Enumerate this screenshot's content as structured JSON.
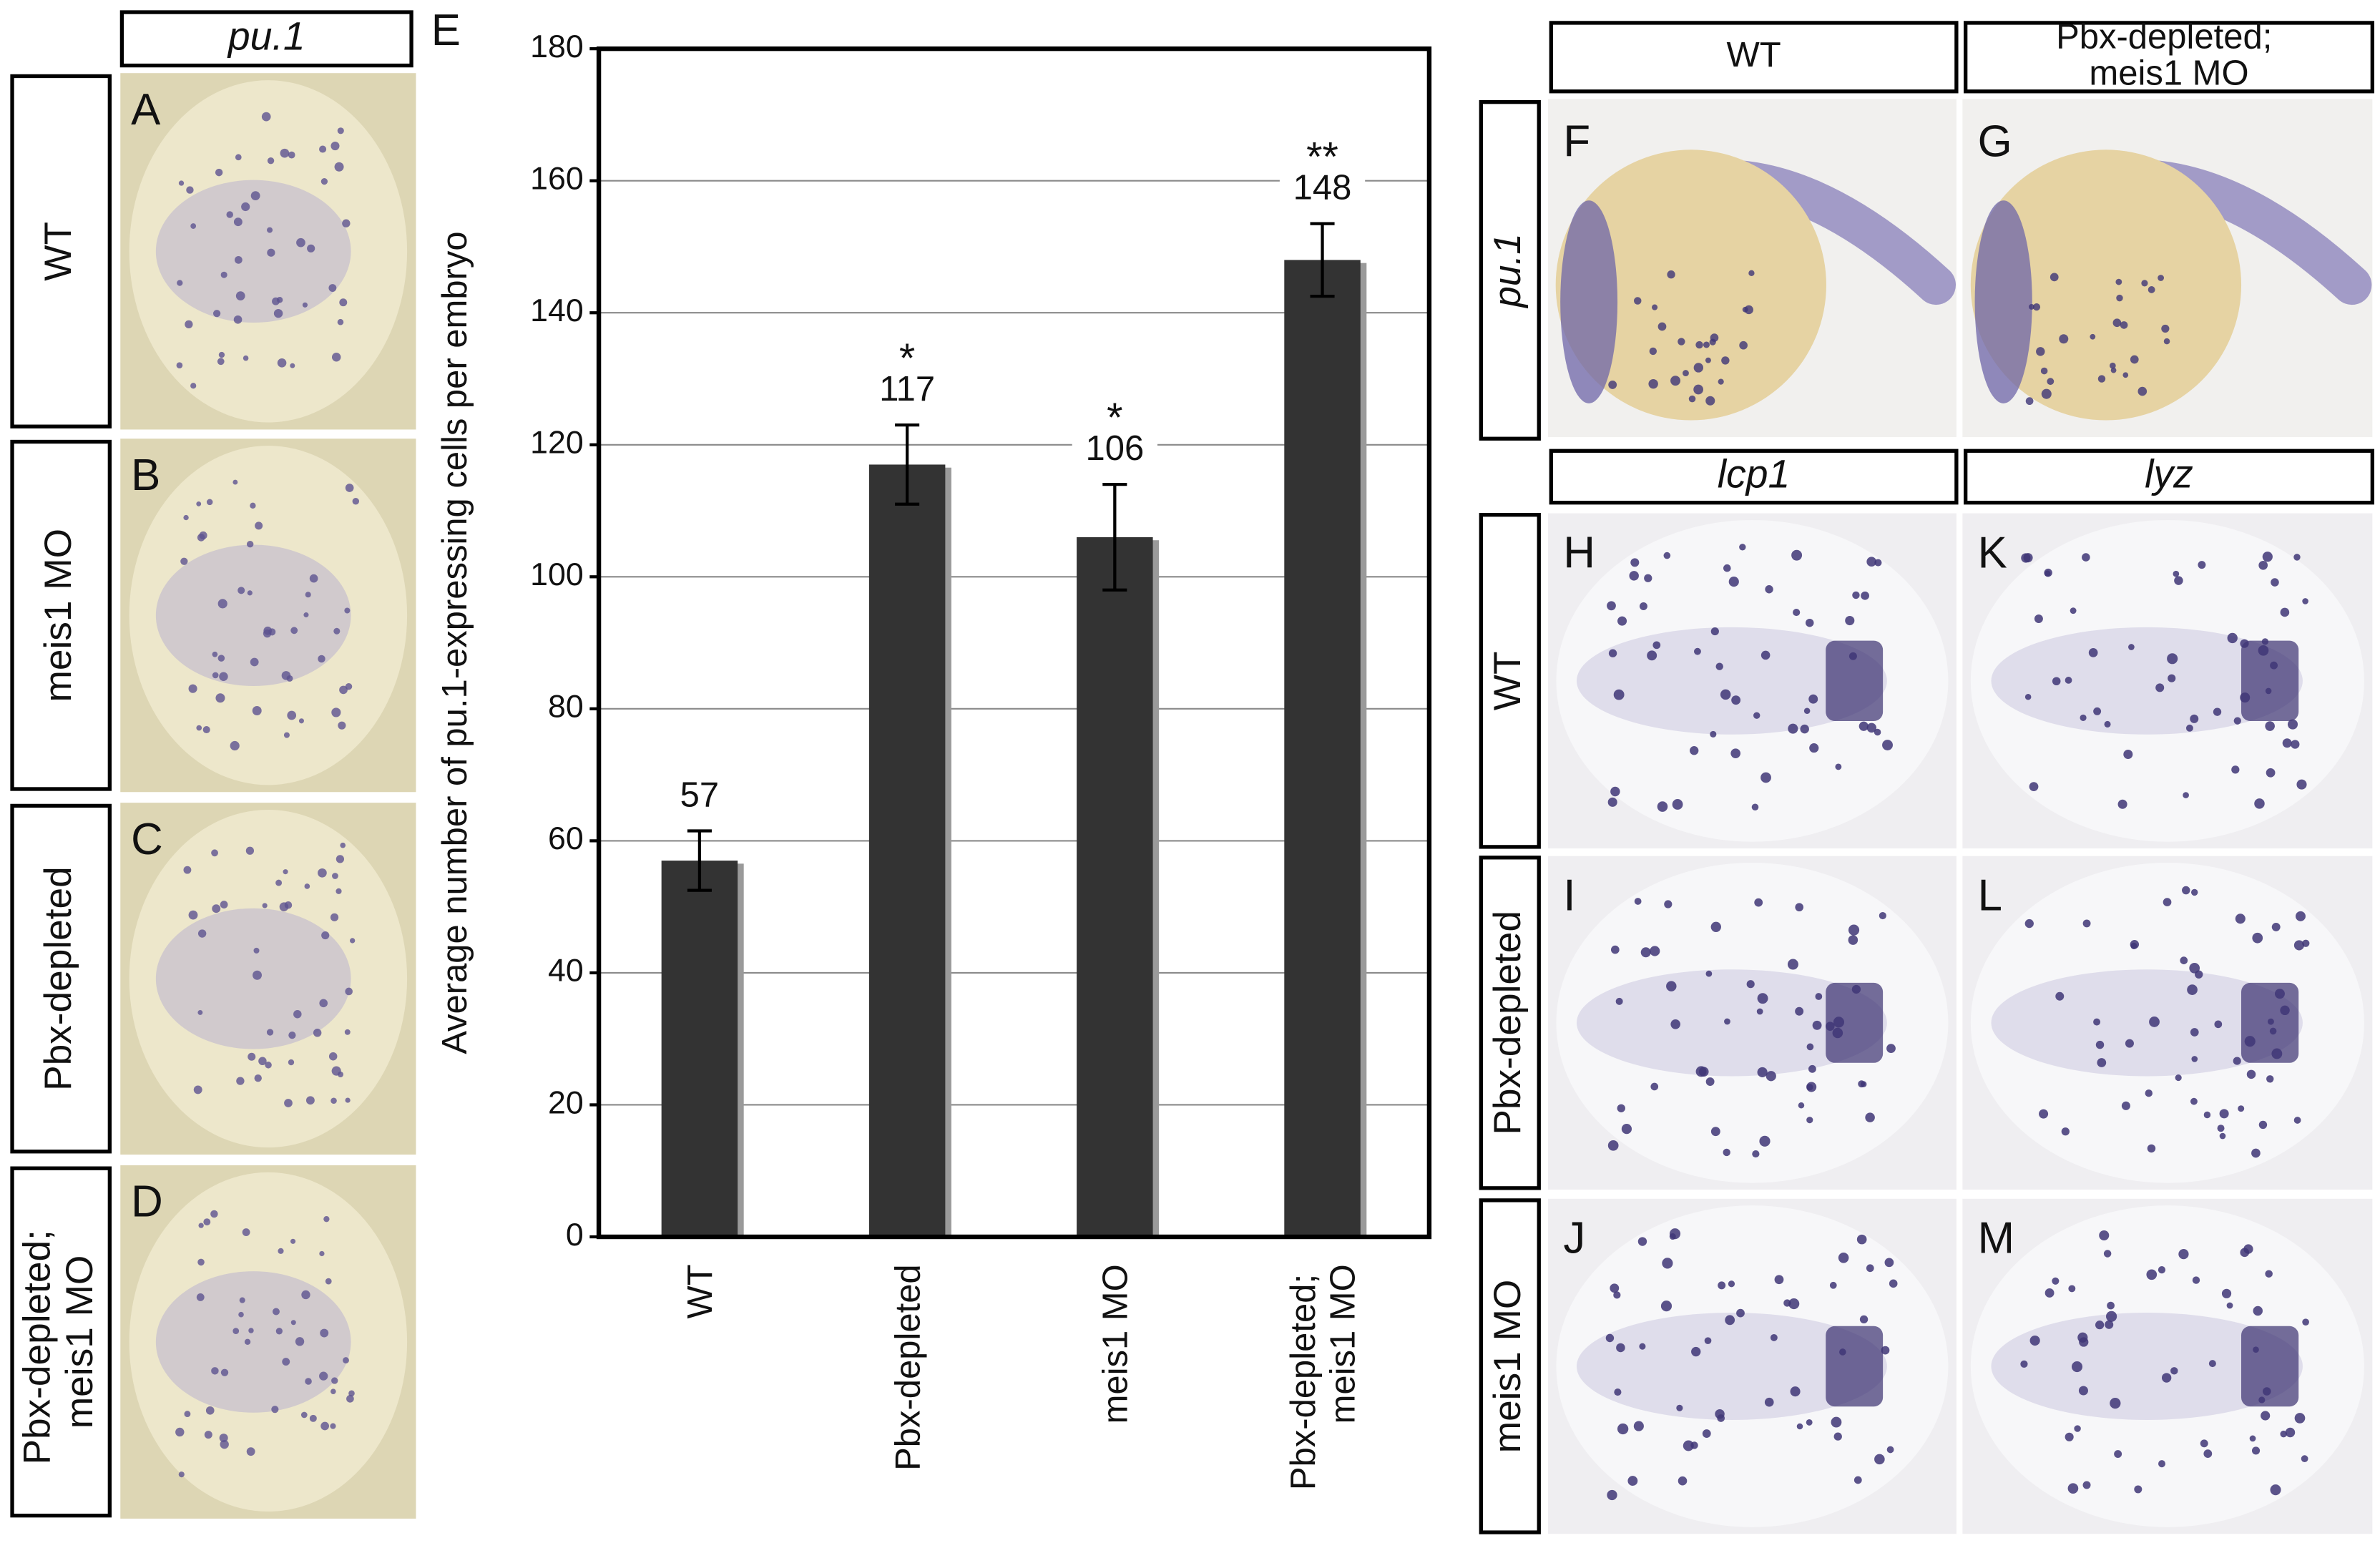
{
  "chart_data": {
    "type": "bar",
    "panel_label": "E",
    "y_label": "Average number of pu.1-expressing cells per embryo",
    "categories": [
      "WT",
      "Pbx-depleted",
      "meis1 MO",
      "Pbx-depleted; meis1 MO"
    ],
    "values": [
      57,
      117,
      106,
      148
    ],
    "errors": [
      4.5,
      6,
      8,
      5.5
    ],
    "significance": [
      null,
      "*",
      "*",
      "**"
    ],
    "color": "#333333",
    "ylim": [
      0,
      180
    ],
    "yticks": [
      0,
      20,
      40,
      60,
      80,
      100,
      120,
      140,
      160,
      180
    ],
    "grid": true
  },
  "left_panels": {
    "header": "pu.1",
    "rows": [
      {
        "label": "WT",
        "panel": "A"
      },
      {
        "label": "meis1 MO",
        "panel": "B"
      },
      {
        "label": "Pbx-depleted",
        "panel": "C"
      },
      {
        "label": "Pbx-depleted; meis1 MO",
        "panel": "D"
      }
    ]
  },
  "right_panels": {
    "top_columns": [
      "WT",
      "Pbx-depleted; meis1 MO"
    ],
    "top_row_label": "pu.1",
    "top_panels": [
      "F",
      "G"
    ],
    "columns": [
      "lcp1",
      "lyz"
    ],
    "rows": [
      {
        "label": "WT",
        "panels": [
          "H",
          "K"
        ]
      },
      {
        "label": "Pbx-depleted",
        "panels": [
          "I",
          "L"
        ]
      },
      {
        "label": "meis1 MO",
        "panels": [
          "J",
          "M"
        ]
      }
    ]
  }
}
